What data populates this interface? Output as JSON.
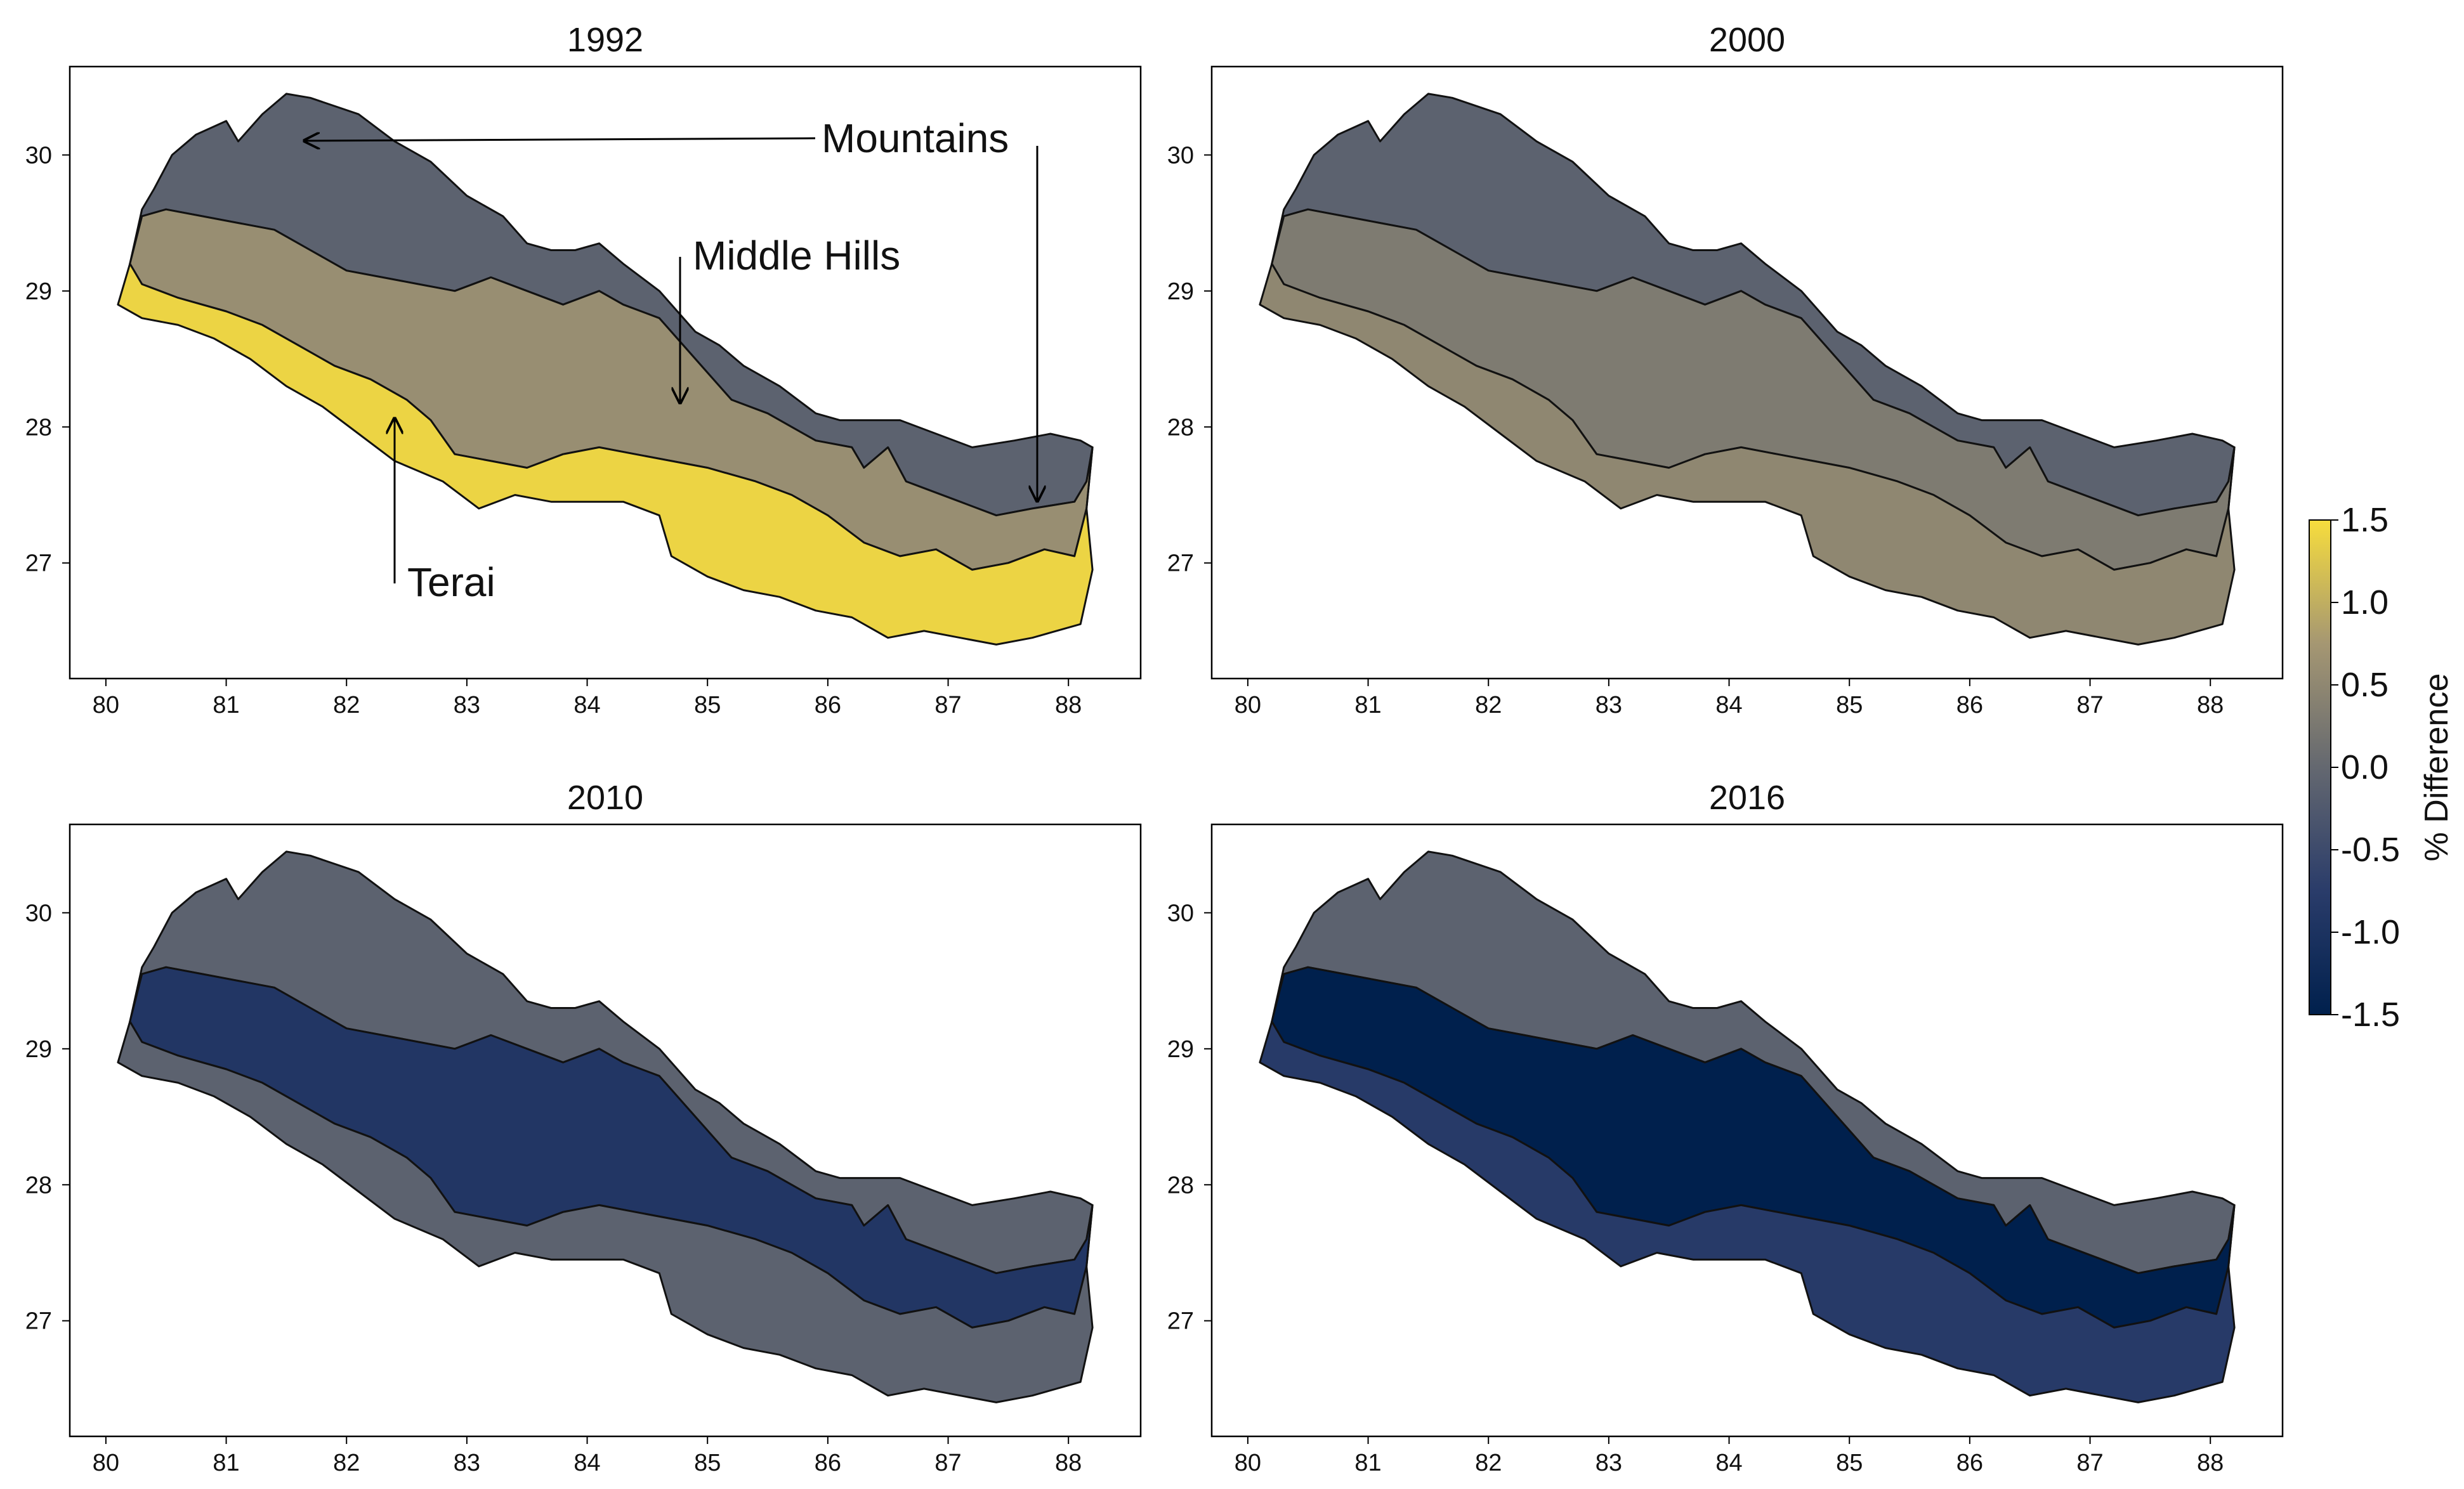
{
  "figure": {
    "colorbar": {
      "label": "% Difference",
      "min": -1.5,
      "max": 1.5,
      "ticks": [
        "1.5",
        "1.0",
        "0.5",
        "0.0",
        "-0.5",
        "-1.0",
        "-1.5"
      ],
      "colors": [
        "#f7dd3d",
        "#a59772",
        "#646870",
        "#2a3c6a",
        "#00204d"
      ]
    },
    "x_ticks": [
      "80",
      "81",
      "82",
      "83",
      "84",
      "85",
      "86",
      "87",
      "88"
    ],
    "y_ticks": [
      "30",
      "29",
      "28",
      "27"
    ],
    "x_range": [
      79.7,
      88.6
    ],
    "y_range": [
      26.15,
      30.65
    ],
    "annotations": {
      "mountains": "Mountains",
      "middle_hills": "Middle Hills",
      "terai": "Terai"
    }
  },
  "chart_data": {
    "type": "heatmap",
    "description_of_values": "% Difference per ecological region",
    "regions": [
      "Mountains",
      "Middle Hills",
      "Terai"
    ],
    "panels": [
      {
        "title": "1992",
        "values": {
          "Mountains": -0.1,
          "Middle Hills": 0.6,
          "Terai": 1.4
        }
      },
      {
        "title": "2000",
        "values": {
          "Mountains": -0.1,
          "Middle Hills": 0.3,
          "Terai": 0.5
        }
      },
      {
        "title": "2010",
        "values": {
          "Mountains": -0.1,
          "Middle Hills": -0.9,
          "Terai": -0.1
        }
      },
      {
        "title": "2016",
        "values": {
          "Mountains": -0.1,
          "Middle Hills": -1.5,
          "Terai": -0.8
        }
      }
    ]
  }
}
